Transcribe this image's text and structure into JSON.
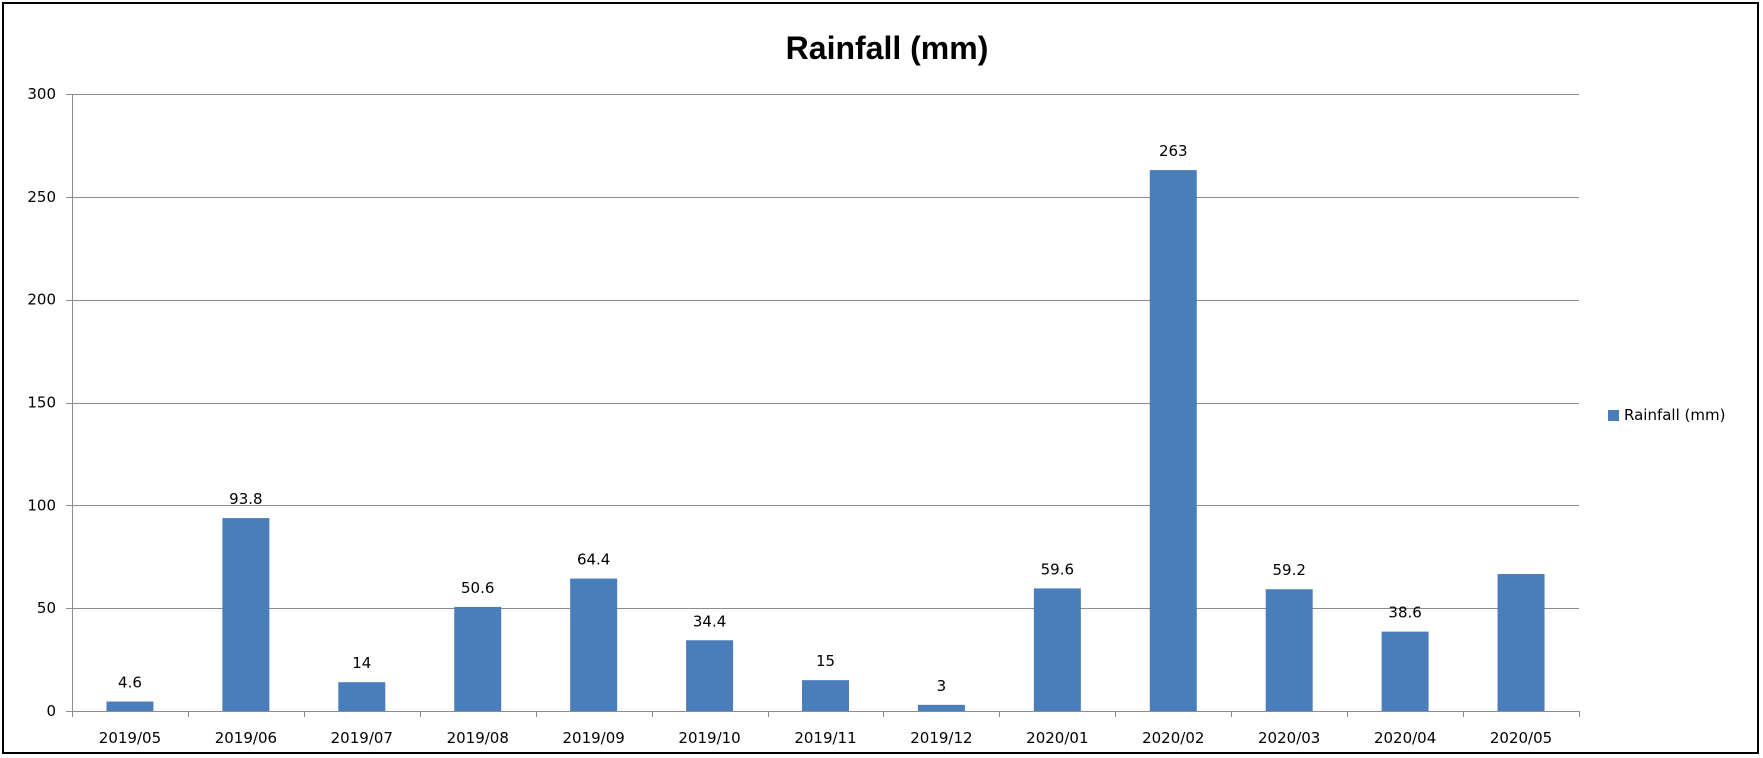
{
  "chart_data": {
    "type": "bar",
    "title": "Rainfall (mm)",
    "xlabel": "",
    "ylabel": "",
    "categories": [
      "2019/05",
      "2019/06",
      "2019/07",
      "2019/08",
      "2019/09",
      "2019/10",
      "2019/11",
      "2019/12",
      "2020/01",
      "2020/02",
      "2020/03",
      "2020/04",
      "2020/05"
    ],
    "series": [
      {
        "name": "Rainfall (mm)",
        "color": "#4a7ebb",
        "values": [
          4.6,
          93.8,
          14,
          50.6,
          64.4,
          34.4,
          15,
          3,
          59.6,
          263,
          59.2,
          38.6,
          66.6
        ]
      }
    ],
    "data_labels": [
      "4.6",
      "93.8",
      "14",
      "50.6",
      "64.4",
      "34.4",
      "15",
      "3",
      "59.6",
      "263",
      "59.2",
      "38.6",
      ""
    ],
    "ylim": [
      0,
      300
    ],
    "yticks": [
      0,
      50,
      100,
      150,
      200,
      250,
      300
    ],
    "grid": true,
    "legend": "right"
  }
}
